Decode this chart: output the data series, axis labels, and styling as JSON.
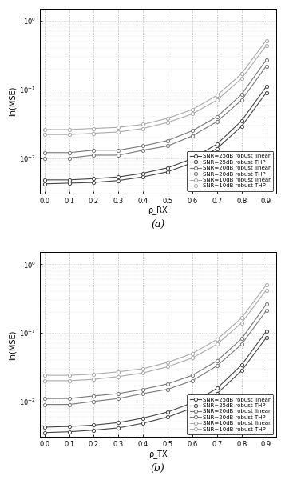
{
  "x": [
    0.0,
    0.1,
    0.2,
    0.3,
    0.4,
    0.5,
    0.6,
    0.7,
    0.8,
    0.9
  ],
  "subplot_a": {
    "xlabel": "ρ_RX",
    "ylabel": "ln(MSE)",
    "label": "(a)",
    "curves": [
      {
        "label": "SNR=25dB robust linear",
        "color": "#444444",
        "linestyle": "-",
        "y": [
          0.0048,
          0.0048,
          0.005,
          0.0053,
          0.006,
          0.0072,
          0.0098,
          0.016,
          0.035,
          0.11
        ]
      },
      {
        "label": "SNR=25dB robust THP",
        "color": "#444444",
        "linestyle": "-",
        "y": [
          0.0042,
          0.0043,
          0.0044,
          0.0047,
          0.0053,
          0.0063,
          0.0085,
          0.0138,
          0.029,
          0.09
        ]
      },
      {
        "label": "SNR=20dB robust linear",
        "color": "#777777",
        "linestyle": "-",
        "y": [
          0.012,
          0.012,
          0.013,
          0.013,
          0.015,
          0.018,
          0.025,
          0.04,
          0.085,
          0.27
        ]
      },
      {
        "label": "SNR=20dB robust THP",
        "color": "#777777",
        "linestyle": "-",
        "y": [
          0.01,
          0.01,
          0.011,
          0.011,
          0.013,
          0.015,
          0.021,
          0.034,
          0.07,
          0.22
        ]
      },
      {
        "label": "SNR=10dB robust linear",
        "color": "#aaaaaa",
        "linestyle": "-",
        "y": [
          0.026,
          0.026,
          0.027,
          0.028,
          0.031,
          0.038,
          0.051,
          0.082,
          0.17,
          0.52
        ]
      },
      {
        "label": "SNR=10dB robust THP",
        "color": "#aaaaaa",
        "linestyle": "-",
        "y": [
          0.022,
          0.022,
          0.023,
          0.024,
          0.027,
          0.033,
          0.044,
          0.07,
          0.145,
          0.44
        ]
      }
    ]
  },
  "subplot_b": {
    "xlabel": "ρ_TX",
    "ylabel": "ln(MSE)",
    "label": "(b)",
    "curves": [
      {
        "label": "SNR=25dB robust linear",
        "color": "#444444",
        "linestyle": "-",
        "y": [
          0.0042,
          0.0043,
          0.0045,
          0.0049,
          0.0057,
          0.007,
          0.0095,
          0.0155,
          0.034,
          0.105
        ]
      },
      {
        "label": "SNR=25dB robust THP",
        "color": "#444444",
        "linestyle": "-",
        "y": [
          0.0035,
          0.0036,
          0.0038,
          0.0041,
          0.0048,
          0.0059,
          0.008,
          0.013,
          0.028,
          0.085
        ]
      },
      {
        "label": "SNR=20dB robust linear",
        "color": "#777777",
        "linestyle": "-",
        "y": [
          0.011,
          0.011,
          0.012,
          0.013,
          0.015,
          0.018,
          0.024,
          0.039,
          0.082,
          0.26
        ]
      },
      {
        "label": "SNR=20dB robust THP",
        "color": "#777777",
        "linestyle": "-",
        "y": [
          0.009,
          0.009,
          0.01,
          0.011,
          0.013,
          0.015,
          0.02,
          0.033,
          0.068,
          0.21
        ]
      },
      {
        "label": "SNR=10dB robust linear",
        "color": "#aaaaaa",
        "linestyle": "-",
        "y": [
          0.024,
          0.024,
          0.025,
          0.027,
          0.03,
          0.037,
          0.05,
          0.08,
          0.165,
          0.5
        ]
      },
      {
        "label": "SNR=10dB robust THP",
        "color": "#aaaaaa",
        "linestyle": "-",
        "y": [
          0.02,
          0.02,
          0.021,
          0.023,
          0.026,
          0.032,
          0.043,
          0.068,
          0.14,
          0.42
        ]
      }
    ]
  },
  "ylim": [
    0.003,
    1.5
  ],
  "yticks": [
    0.01,
    0.1,
    1.0
  ],
  "marker": "o",
  "markersize": 3.0,
  "linewidth": 0.8,
  "grid_color": "#bbbbbb",
  "background_color": "#ffffff",
  "legend_fontsize": 5.0,
  "axis_fontsize": 7,
  "tick_fontsize": 6
}
